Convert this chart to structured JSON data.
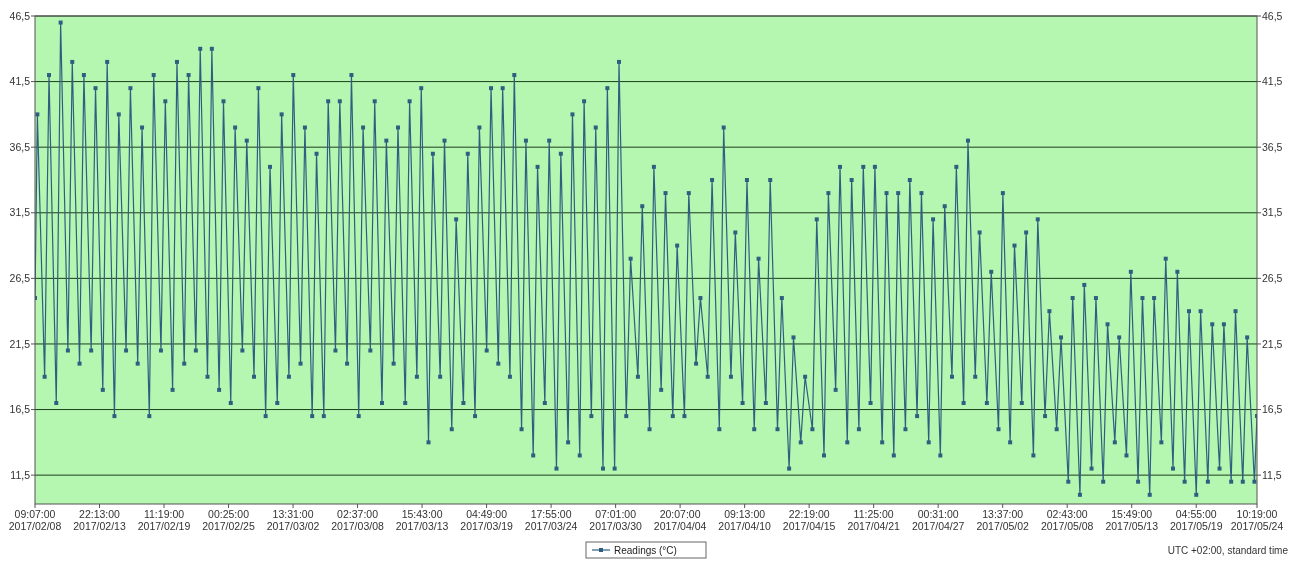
{
  "chart_data": {
    "type": "line",
    "xlim": [
      "2017-02-08T09:07",
      "2017-05-24T10:19"
    ],
    "xticks": [
      {
        "value": "2017-02-08T09:07",
        "label": "09:07:00\n2017/02/08"
      },
      {
        "value": "2017-02-13T22:13",
        "label": "22:13:00\n2017/02/13"
      },
      {
        "value": "2017-02-19T11:19",
        "label": "11:19:00\n2017/02/19"
      },
      {
        "value": "2017-02-25T00:25",
        "label": "00:25:00\n2017/02/25"
      },
      {
        "value": "2017-03-02T13:31",
        "label": "13:31:00\n2017/03/02"
      },
      {
        "value": "2017-03-08T02:37",
        "label": "02:37:00\n2017/03/08"
      },
      {
        "value": "2017-03-13T15:43",
        "label": "15:43:00\n2017/03/13"
      },
      {
        "value": "2017-03-19T04:49",
        "label": "04:49:00\n2017/03/19"
      },
      {
        "value": "2017-03-24T17:55",
        "label": "17:55:00\n2017/03/24"
      },
      {
        "value": "2017-03-30T07:01",
        "label": "07:01:00\n2017/03/30"
      },
      {
        "value": "2017-04-04T20:07",
        "label": "20:07:00\n2017/04/04"
      },
      {
        "value": "2017-04-10T09:13",
        "label": "09:13:00\n2017/04/10"
      },
      {
        "value": "2017-04-15T22:19",
        "label": "22:19:00\n2017/04/15"
      },
      {
        "value": "2017-04-21T11:25",
        "label": "11:25:00\n2017/04/21"
      },
      {
        "value": "2017-04-27T00:31",
        "label": "00:31:00\n2017/04/27"
      },
      {
        "value": "2017-05-02T13:37",
        "label": "13:37:00\n2017/05/02"
      },
      {
        "value": "2017-05-08T02:43",
        "label": "02:43:00\n2017/05/08"
      },
      {
        "value": "2017-05-13T15:49",
        "label": "15:49:00\n2017/05/13"
      },
      {
        "value": "2017-05-19T04:55",
        "label": "04:55:00\n2017/05/19"
      },
      {
        "value": "2017-05-24T10:19",
        "label": "10:19:00\n2017/05/24"
      }
    ],
    "ylim": [
      9.3,
      46.5
    ],
    "yticks": [
      {
        "value": 11.5,
        "label": "11,5"
      },
      {
        "value": 16.5,
        "label": "16,5"
      },
      {
        "value": 21.5,
        "label": "21,5"
      },
      {
        "value": 26.5,
        "label": "26,5"
      },
      {
        "value": 31.5,
        "label": "31,5"
      },
      {
        "value": 36.5,
        "label": "36,5"
      },
      {
        "value": 41.5,
        "label": "41,5"
      },
      {
        "value": 46.5,
        "label": "46,5"
      }
    ],
    "y2lim": [
      9.3,
      46.5
    ],
    "y2ticks": [
      {
        "value": 11.5,
        "label": "11,5"
      },
      {
        "value": 16.5,
        "label": "16,5"
      },
      {
        "value": 21.5,
        "label": "21,5"
      },
      {
        "value": 26.5,
        "label": "26,5"
      },
      {
        "value": 31.5,
        "label": "31,5"
      },
      {
        "value": 36.5,
        "label": "36,5"
      },
      {
        "value": 41.5,
        "label": "41,5"
      },
      {
        "value": 46.5,
        "label": "46,5"
      }
    ],
    "grid": "y",
    "legend": "bottom",
    "marker": "square",
    "line_style": "solid",
    "annotations": [
      "UTC +02:00, standard time"
    ],
    "series": [
      {
        "name": "Readings (°C)",
        "color": "#2f5f80",
        "x": [
          "2017-02-08T09:07",
          "2017-02-08T14:00",
          "2017-02-09T05:00",
          "2017-02-09T14:00",
          "2017-02-10T05:00",
          "2017-02-10T14:00",
          "2017-02-11T05:00",
          "2017-02-11T14:00",
          "2017-02-12T05:00",
          "2017-02-12T14:00",
          "2017-02-13T05:00",
          "2017-02-13T14:00",
          "2017-02-14T05:00",
          "2017-02-14T14:00",
          "2017-02-15T05:00",
          "2017-02-15T14:00",
          "2017-02-16T05:00",
          "2017-02-16T14:00",
          "2017-02-17T05:00",
          "2017-02-17T14:00",
          "2017-02-18T05:00",
          "2017-02-18T14:00",
          "2017-02-19T05:00",
          "2017-02-19T14:00",
          "2017-02-20T05:00",
          "2017-02-20T14:00",
          "2017-02-21T05:00",
          "2017-02-21T14:00",
          "2017-02-22T05:00",
          "2017-02-22T14:00",
          "2017-02-23T05:00",
          "2017-02-23T14:00",
          "2017-02-24T05:00",
          "2017-02-24T14:00",
          "2017-02-25T05:00",
          "2017-02-25T14:00",
          "2017-02-26T05:00",
          "2017-02-26T14:00",
          "2017-02-27T05:00",
          "2017-02-27T14:00",
          "2017-02-28T05:00",
          "2017-02-28T14:00",
          "2017-03-01T05:00",
          "2017-03-01T14:00",
          "2017-03-02T05:00",
          "2017-03-02T14:00",
          "2017-03-03T05:00",
          "2017-03-03T14:00",
          "2017-03-04T05:00",
          "2017-03-04T14:00",
          "2017-03-05T05:00",
          "2017-03-05T14:00",
          "2017-03-06T05:00",
          "2017-03-06T14:00",
          "2017-03-07T05:00",
          "2017-03-07T14:00",
          "2017-03-08T05:00",
          "2017-03-08T14:00",
          "2017-03-09T05:00",
          "2017-03-09T14:00",
          "2017-03-10T05:00",
          "2017-03-10T14:00",
          "2017-03-11T05:00",
          "2017-03-11T14:00",
          "2017-03-12T05:00",
          "2017-03-12T14:00",
          "2017-03-13T05:00",
          "2017-03-13T14:00",
          "2017-03-14T05:00",
          "2017-03-14T14:00",
          "2017-03-15T05:00",
          "2017-03-15T14:00",
          "2017-03-16T05:00",
          "2017-03-16T14:00",
          "2017-03-17T05:00",
          "2017-03-17T14:00",
          "2017-03-18T05:00",
          "2017-03-18T14:00",
          "2017-03-19T05:00",
          "2017-03-19T14:00",
          "2017-03-20T05:00",
          "2017-03-20T14:00",
          "2017-03-21T05:00",
          "2017-03-21T14:00",
          "2017-03-22T05:00",
          "2017-03-22T14:00",
          "2017-03-23T05:00",
          "2017-03-23T14:00",
          "2017-03-24T05:00",
          "2017-03-24T14:00",
          "2017-03-25T05:00",
          "2017-03-25T14:00",
          "2017-03-26T05:00",
          "2017-03-26T14:00",
          "2017-03-27T05:00",
          "2017-03-27T14:00",
          "2017-03-28T05:00",
          "2017-03-28T14:00",
          "2017-03-29T05:00",
          "2017-03-29T14:00",
          "2017-03-30T05:00",
          "2017-03-30T14:00",
          "2017-03-31T05:00",
          "2017-03-31T14:00",
          "2017-04-01T05:00",
          "2017-04-01T14:00",
          "2017-04-02T05:00",
          "2017-04-02T14:00",
          "2017-04-03T05:00",
          "2017-04-03T14:00",
          "2017-04-04T05:00",
          "2017-04-04T14:00",
          "2017-04-05T05:00",
          "2017-04-05T14:00",
          "2017-04-06T05:00",
          "2017-04-06T14:00",
          "2017-04-07T05:00",
          "2017-04-07T14:00",
          "2017-04-08T05:00",
          "2017-04-08T14:00",
          "2017-04-09T05:00",
          "2017-04-09T14:00",
          "2017-04-10T05:00",
          "2017-04-10T14:00",
          "2017-04-11T05:00",
          "2017-04-11T14:00",
          "2017-04-12T05:00",
          "2017-04-12T14:00",
          "2017-04-13T05:00",
          "2017-04-13T14:00",
          "2017-04-14T05:00",
          "2017-04-14T14:00",
          "2017-04-15T05:00",
          "2017-04-15T14:00",
          "2017-04-16T05:00",
          "2017-04-16T14:00",
          "2017-04-17T05:00",
          "2017-04-17T14:00",
          "2017-04-18T05:00",
          "2017-04-18T14:00",
          "2017-04-19T05:00",
          "2017-04-19T14:00",
          "2017-04-20T05:00",
          "2017-04-20T14:00",
          "2017-04-21T05:00",
          "2017-04-21T14:00",
          "2017-04-22T05:00",
          "2017-04-22T14:00",
          "2017-04-23T05:00",
          "2017-04-23T14:00",
          "2017-04-24T05:00",
          "2017-04-24T14:00",
          "2017-04-25T05:00",
          "2017-04-25T14:00",
          "2017-04-26T05:00",
          "2017-04-26T14:00",
          "2017-04-27T05:00",
          "2017-04-27T14:00",
          "2017-04-28T05:00",
          "2017-04-28T14:00",
          "2017-04-29T05:00",
          "2017-04-29T14:00",
          "2017-04-30T05:00",
          "2017-04-30T14:00",
          "2017-05-01T05:00",
          "2017-05-01T14:00",
          "2017-05-02T05:00",
          "2017-05-02T14:00",
          "2017-05-03T05:00",
          "2017-05-03T14:00",
          "2017-05-04T05:00",
          "2017-05-04T14:00",
          "2017-05-05T05:00",
          "2017-05-05T14:00",
          "2017-05-06T05:00",
          "2017-05-06T14:00",
          "2017-05-07T05:00",
          "2017-05-07T14:00",
          "2017-05-08T05:00",
          "2017-05-08T14:00",
          "2017-05-09T05:00",
          "2017-05-09T14:00",
          "2017-05-10T05:00",
          "2017-05-10T14:00",
          "2017-05-11T05:00",
          "2017-05-11T14:00",
          "2017-05-12T05:00",
          "2017-05-12T14:00",
          "2017-05-13T05:00",
          "2017-05-13T14:00",
          "2017-05-14T05:00",
          "2017-05-14T14:00",
          "2017-05-15T05:00",
          "2017-05-15T14:00",
          "2017-05-16T05:00",
          "2017-05-16T14:00",
          "2017-05-17T05:00",
          "2017-05-17T14:00",
          "2017-05-18T05:00",
          "2017-05-18T14:00",
          "2017-05-19T05:00",
          "2017-05-19T14:00",
          "2017-05-20T05:00",
          "2017-05-20T14:00",
          "2017-05-21T05:00",
          "2017-05-21T14:00",
          "2017-05-22T05:00",
          "2017-05-22T14:00",
          "2017-05-23T05:00",
          "2017-05-23T14:00",
          "2017-05-24T05:00",
          "2017-05-24T10:19"
        ],
        "values": [
          25,
          39,
          19,
          42,
          17,
          46,
          21,
          43,
          20,
          42,
          21,
          41,
          18,
          43,
          16,
          39,
          21,
          41,
          20,
          38,
          16,
          42,
          21,
          40,
          18,
          43,
          20,
          42,
          21,
          44,
          19,
          44,
          18,
          40,
          17,
          38,
          21,
          37,
          19,
          41,
          16,
          35,
          17,
          39,
          19,
          42,
          20,
          38,
          16,
          36,
          16,
          40,
          21,
          40,
          20,
          42,
          16,
          38,
          21,
          40,
          17,
          37,
          20,
          38,
          17,
          40,
          19,
          41,
          14,
          36,
          19,
          37,
          15,
          31,
          17,
          36,
          16,
          38,
          21,
          41,
          20,
          41,
          19,
          42,
          15,
          37,
          13,
          35,
          17,
          37,
          12,
          36,
          14,
          39,
          13,
          40,
          16,
          38,
          12,
          41,
          12,
          43,
          16,
          28,
          19,
          32,
          15,
          35,
          18,
          33,
          16,
          29,
          16,
          33,
          20,
          25,
          19,
          34,
          15,
          38,
          19,
          30,
          17,
          34,
          15,
          28,
          17,
          34,
          15,
          25,
          12,
          22,
          14,
          19,
          15,
          31,
          13,
          33,
          18,
          35,
          14,
          34,
          15,
          35,
          17,
          35,
          14,
          33,
          13,
          33,
          15,
          34,
          16,
          33,
          14,
          31,
          13,
          32,
          19,
          35,
          17,
          37,
          19,
          30,
          17,
          27,
          15,
          33,
          14,
          29,
          17,
          30,
          13,
          31,
          16,
          24,
          15,
          22,
          11,
          25,
          10,
          26,
          12,
          25,
          11,
          23,
          14,
          22,
          13,
          27,
          11,
          25,
          10,
          25,
          14,
          28,
          12,
          27,
          11,
          24,
          10,
          24,
          11,
          23,
          12,
          23,
          11,
          24,
          11,
          22,
          11,
          16
        ]
      }
    ]
  }
}
